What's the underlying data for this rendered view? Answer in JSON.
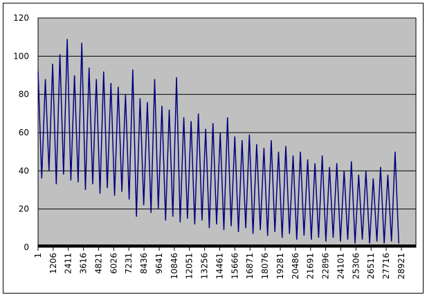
{
  "chart_data": {
    "type": "line",
    "x": [
      1,
      291,
      581,
      871,
      1161,
      1451,
      1741,
      2031,
      2321,
      2611,
      2901,
      3191,
      3481,
      3771,
      4061,
      4351,
      4641,
      4931,
      5221,
      5511,
      5801,
      6091,
      6381,
      6671,
      6961,
      7251,
      7541,
      7831,
      8121,
      8411,
      8701,
      8991,
      9281,
      9571,
      9861,
      10151,
      10441,
      10731,
      11021,
      11311,
      11601,
      11891,
      12181,
      12471,
      12761,
      13051,
      13341,
      13631,
      13921,
      14211,
      14501,
      14791,
      15081,
      15371,
      15661,
      15951,
      16241,
      16531,
      16821,
      17111,
      17401,
      17691,
      17981,
      18271,
      18561,
      18851,
      19141,
      19431,
      19721,
      20011,
      20301,
      20591,
      20881,
      21171,
      21461,
      21751,
      22041,
      22331,
      22621,
      22911,
      23201,
      23491,
      23781,
      24071,
      24361,
      24651,
      24941,
      25231,
      25521,
      25811,
      26101,
      26391,
      26681,
      26971,
      27261,
      27551,
      27841,
      28131,
      28421,
      28711
    ],
    "series": [
      {
        "color": "#000080",
        "values": [
          92,
          36,
          88,
          40,
          96,
          33,
          101,
          38,
          109,
          35,
          90,
          34,
          107,
          30,
          94,
          33,
          88,
          28,
          92,
          31,
          86,
          27,
          84,
          29,
          80,
          25,
          93,
          16,
          78,
          22,
          76,
          18,
          88,
          20,
          74,
          14,
          72,
          16,
          89,
          13,
          68,
          15,
          66,
          12,
          70,
          14,
          62,
          10,
          65,
          12,
          60,
          9,
          68,
          11,
          58,
          8,
          56,
          10,
          59,
          7,
          54,
          9,
          52,
          6,
          56,
          8,
          50,
          5,
          53,
          7,
          48,
          4,
          50,
          6,
          46,
          4,
          44,
          5,
          48,
          3,
          42,
          5,
          44,
          3,
          40,
          4,
          45,
          2,
          38,
          4,
          40,
          2,
          36,
          3,
          42,
          2,
          38,
          3,
          50,
          2
        ]
      }
    ],
    "xlim": [
      1,
      30078
    ],
    "xticks": [
      1,
      1206,
      2411,
      3616,
      4821,
      6026,
      7231,
      8436,
      9641,
      10846,
      12051,
      13256,
      14461,
      15666,
      16871,
      18076,
      19281,
      20486,
      21691,
      22896,
      24101,
      25306,
      26511,
      27716,
      28921
    ],
    "ylim": [
      0,
      120
    ],
    "yticks": [
      0,
      20,
      40,
      60,
      80,
      100,
      120
    ],
    "grid": true,
    "plot_background": "#c0c0c0"
  }
}
